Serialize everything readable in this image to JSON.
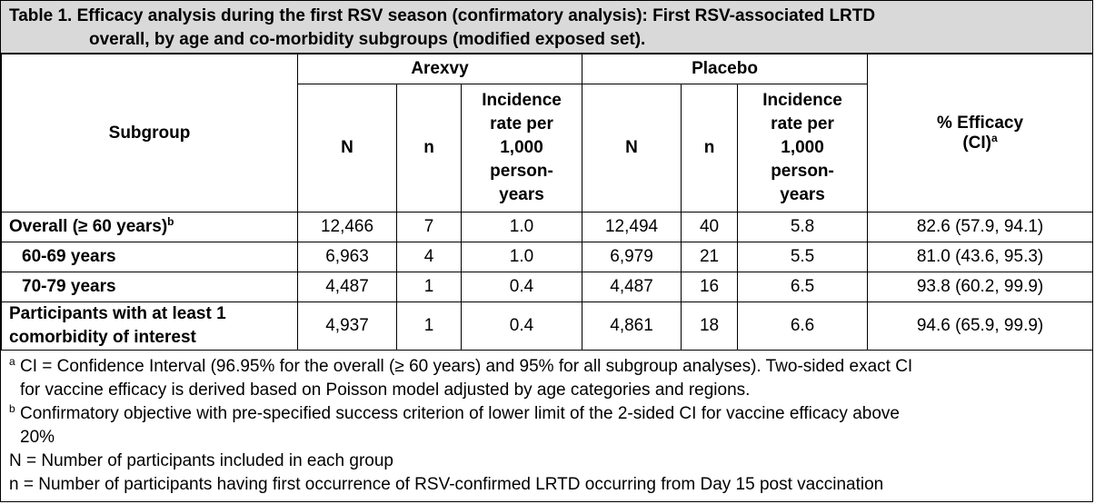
{
  "caption": {
    "line1": "Table 1. Efficacy analysis during the first RSV season (confirmatory analysis): First RSV-associated LRTD",
    "line2": "overall, by age and co-morbidity subgroups (modified exposed set)."
  },
  "header": {
    "subgroup": "Subgroup",
    "arexvy": "Arexvy",
    "placebo": "Placebo",
    "N": "N",
    "n": "n",
    "incidence_lines": [
      "Incidence",
      "rate per",
      "1,000",
      "person-",
      "years"
    ],
    "efficacy_line1": "% Efficacy",
    "efficacy_line2": "(CI)",
    "efficacy_sup": "a"
  },
  "rows": [
    {
      "subgroup": "Overall (≥ 60 years)",
      "sup": "b",
      "a_N": "12,466",
      "a_n": "7",
      "a_rate": "1.0",
      "p_N": "12,494",
      "p_n": "40",
      "p_rate": "5.8",
      "efficacy": "82.6 (57.9, 94.1)"
    },
    {
      "subgroup": "60-69 years",
      "sup": "",
      "a_N": "6,963",
      "a_n": "4",
      "a_rate": "1.0",
      "p_N": "6,979",
      "p_n": "21",
      "p_rate": "5.5",
      "efficacy": "81.0 (43.6, 95.3)"
    },
    {
      "subgroup": "70-79 years",
      "sup": "",
      "a_N": "4,487",
      "a_n": "1",
      "a_rate": "0.4",
      "p_N": "4,487",
      "p_n": "16",
      "p_rate": "6.5",
      "efficacy": "93.8 (60.2, 99.9)"
    },
    {
      "subgroup_line1": "Participants with at least 1",
      "subgroup_line2": "comorbidity of interest",
      "a_N": "4,937",
      "a_n": "1",
      "a_rate": "0.4",
      "p_N": "4,861",
      "p_n": "18",
      "p_rate": "6.6",
      "efficacy": "94.6 (65.9, 99.9)"
    }
  ],
  "footnotes": {
    "a_mark": "a",
    "a_text_line1": "CI = Confidence Interval (96.95% for the overall (≥ 60 years) and 95% for all subgroup analyses). Two-sided exact CI",
    "a_text_line2": "for vaccine efficacy is derived based on Poisson model adjusted by age categories and regions.",
    "b_mark": "b",
    "b_text_line1": "Confirmatory objective with pre-specified success criterion of lower limit of the 2-sided CI for vaccine efficacy above",
    "b_text_line2": "20%",
    "N_def": "N = Number of participants included in each group",
    "n_def": "n = Number of participants having first occurrence of RSV-confirmed LRTD occurring from Day 15 post vaccination"
  }
}
